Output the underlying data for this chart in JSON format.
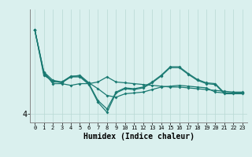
{
  "xlabel": "Humidex (Indice chaleur)",
  "bg_color": "#daf0ee",
  "line_color": "#1a7a72",
  "grid_color": "#b8d8d4",
  "y_tick_val": 4,
  "ylim": [
    3.5,
    10.2
  ],
  "series": [
    [
      9.0,
      6.5,
      5.8,
      5.8,
      5.7,
      5.8,
      5.8,
      5.9,
      6.2,
      5.9,
      5.85,
      5.8,
      5.75,
      5.7,
      5.65,
      5.6,
      5.6,
      5.55,
      5.5,
      5.45,
      5.4,
      5.35,
      5.3,
      5.3
    ],
    [
      9.0,
      6.5,
      6.0,
      5.9,
      6.2,
      6.3,
      5.85,
      5.5,
      5.1,
      5.0,
      5.2,
      5.25,
      5.3,
      5.45,
      5.6,
      5.65,
      5.7,
      5.65,
      5.6,
      5.55,
      5.3,
      5.25,
      5.25,
      5.25
    ],
    [
      9.0,
      6.4,
      5.9,
      5.9,
      6.25,
      6.25,
      5.8,
      4.8,
      4.3,
      5.3,
      5.55,
      5.5,
      5.6,
      5.9,
      6.3,
      6.8,
      6.8,
      6.4,
      6.05,
      5.85,
      5.8,
      5.25,
      5.25,
      5.25
    ],
    [
      9.0,
      6.3,
      5.95,
      5.85,
      6.2,
      6.2,
      5.75,
      4.7,
      4.1,
      5.25,
      5.5,
      5.45,
      5.55,
      5.85,
      6.25,
      6.75,
      6.75,
      6.35,
      6.0,
      5.8,
      5.75,
      5.2,
      5.2,
      5.2
    ]
  ]
}
